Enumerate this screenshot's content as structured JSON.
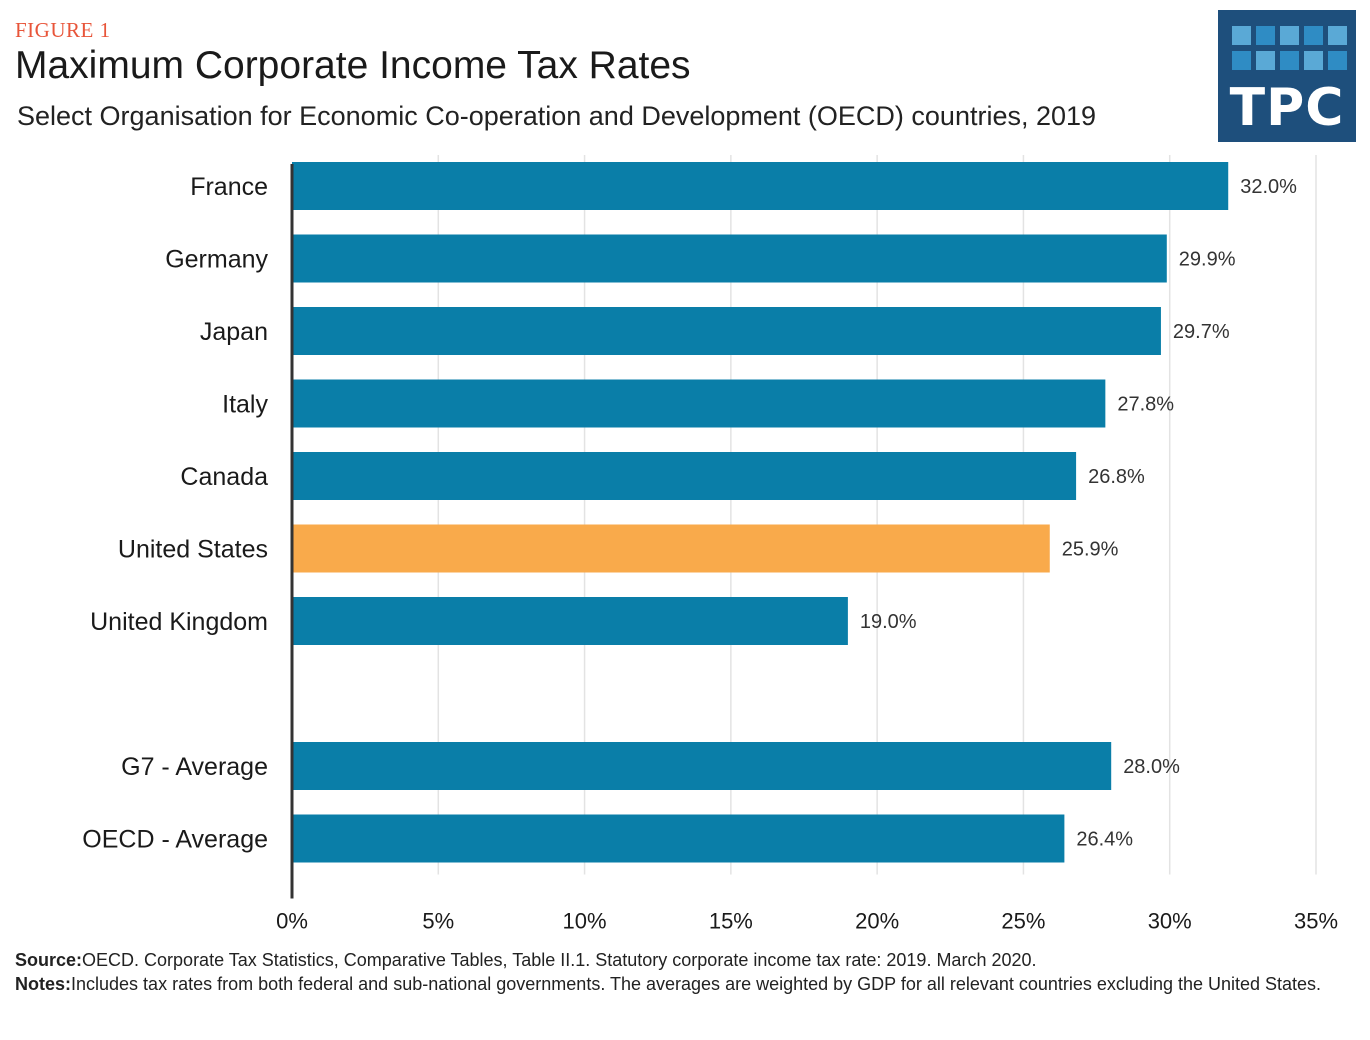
{
  "figure_label": "FIGURE 1",
  "title": "Maximum Corporate Income Tax Rates",
  "subtitle": "Select Organisation for Economic Co-operation and Development (OECD) countries, 2019",
  "logo": {
    "text": "TPC",
    "background": "#1e4f7c"
  },
  "colors": {
    "bar": "#0a7ea8",
    "highlight": "#f9aa4b",
    "grid": "#e3e3e3",
    "axis": "#333333"
  },
  "chart_data": {
    "type": "bar",
    "orientation": "horizontal",
    "categories": [
      "France",
      "Germany",
      "Japan",
      "Italy",
      "Canada",
      "United States",
      "United Kingdom",
      "G7 - Average",
      "OECD - Average"
    ],
    "values": [
      32.0,
      29.9,
      29.7,
      27.8,
      26.8,
      25.9,
      19.0,
      28.0,
      26.4
    ],
    "value_labels": [
      "32.0%",
      "29.9%",
      "29.7%",
      "27.8%",
      "26.8%",
      "25.9%",
      "19.0%",
      "28.0%",
      "26.4%"
    ],
    "highlight": "United States",
    "xlim": [
      0,
      35
    ],
    "xticks": [
      0,
      5,
      10,
      15,
      20,
      25,
      30,
      35
    ],
    "xtick_labels": [
      "0%",
      "5%",
      "10%",
      "15%",
      "20%",
      "25%",
      "30%",
      "35%"
    ],
    "grid": true
  },
  "footer": {
    "source_label": "Source:",
    "source_text": "OECD. Corporate Tax Statistics, Comparative Tables, Table II.1. Statutory corporate income tax rate: 2019. March 2020.",
    "notes_label": "Notes:",
    "notes_text": "Includes tax rates from both federal and sub-national governments. The averages are weighted by GDP for all relevant countries excluding the United States."
  }
}
